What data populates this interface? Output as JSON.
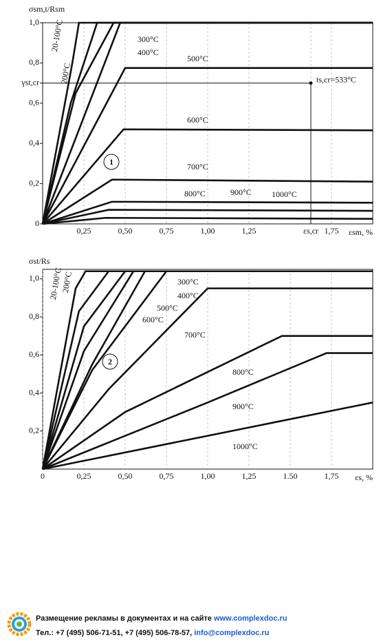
{
  "chart_data": [
    {
      "type": "line",
      "annotation_number": "1",
      "annotation": "ts,cr=533°C",
      "y_label": "σsm,t/Rsm",
      "x_label": "εsm, %",
      "xlim": [
        0,
        2
      ],
      "ylim": [
        0,
        1
      ],
      "grid": true,
      "xticks": [
        {
          "value": 0.25,
          "label": "0,25"
        },
        {
          "value": 0.5,
          "label": "0,50"
        },
        {
          "value": 0.75,
          "label": "0,75"
        },
        {
          "value": 1,
          "label": "1,00"
        },
        {
          "value": 1.25,
          "label": "1,25"
        },
        {
          "value": 1.625,
          "label": "εs,cr"
        },
        {
          "value": 1.75,
          "label": "1,75"
        }
      ],
      "yticks": [
        0,
        {
          "value": 0.2,
          "label": "0,2"
        },
        {
          "value": 0.4,
          "label": "0,4"
        },
        {
          "value": 0.6,
          "label": "0,6"
        },
        {
          "value": 0.8,
          "label": "0,8"
        },
        {
          "value": 1,
          "label": "1,0"
        },
        {
          "value": 0.7,
          "label": "γst,cr"
        }
      ],
      "series": [
        {
          "name": "20-100°C",
          "color": "#111",
          "x": [
            0,
            0.18,
            0.22,
            2
          ],
          "values": [
            0,
            0.8,
            1,
            1
          ]
        },
        {
          "name": "200°C",
          "color": "#111",
          "x": [
            0,
            0.17,
            0.33,
            2
          ],
          "values": [
            0,
            0.6,
            1,
            1
          ]
        },
        {
          "name": "300°C",
          "color": "#111",
          "x": [
            0,
            0.2,
            0.43,
            2
          ],
          "values": [
            0,
            0.65,
            1,
            1
          ]
        },
        {
          "name": "400°C",
          "color": "#111",
          "x": [
            0,
            0.47,
            2
          ],
          "values": [
            0,
            1,
            1
          ]
        },
        {
          "name": "500°C",
          "color": "#111",
          "x": [
            0,
            0.5,
            2
          ],
          "values": [
            0,
            0.775,
            0.775
          ]
        },
        {
          "name": "600°C",
          "color": "#111",
          "x": [
            0,
            0.49,
            2
          ],
          "values": [
            0,
            0.47,
            0.465
          ]
        },
        {
          "name": "700°C",
          "color": "#111",
          "x": [
            0,
            0.42,
            2
          ],
          "values": [
            0,
            0.22,
            0.21
          ]
        },
        {
          "name": "800°C",
          "color": "#111",
          "x": [
            0,
            0.42,
            2
          ],
          "values": [
            0,
            0.11,
            0.105
          ]
        },
        {
          "name": "900°C",
          "color": "#111",
          "x": [
            0,
            0.4,
            2
          ],
          "values": [
            0,
            0.07,
            0.065
          ]
        },
        {
          "name": "1000°C",
          "color": "#111",
          "x": [
            0,
            0.38,
            2
          ],
          "values": [
            0,
            0.03,
            0.025
          ]
        }
      ]
    },
    {
      "type": "line",
      "annotation_number": "2",
      "y_label": "σst/Rs",
      "x_label": "εs, %",
      "xlim": [
        0,
        2
      ],
      "ylim": [
        0,
        1.05
      ],
      "grid": true,
      "xticks": [
        0,
        {
          "value": 0.25,
          "label": "0,25"
        },
        {
          "value": 0.5,
          "label": "0,50"
        },
        {
          "value": 0.75,
          "label": "0,75"
        },
        {
          "value": 1,
          "label": "1,00"
        },
        {
          "value": 1.25,
          "label": "1,25"
        },
        {
          "value": 1.5,
          "label": "1.50"
        },
        {
          "value": 1.75,
          "label": "1,75"
        }
      ],
      "yticks": [
        {
          "value": 0.2,
          "label": "0,2"
        },
        {
          "value": 0.4,
          "label": "0,4"
        },
        {
          "value": 0.6,
          "label": "0,6"
        },
        {
          "value": 0.8,
          "label": "0,8"
        },
        {
          "value": 1,
          "label": "1,0"
        }
      ],
      "series": [
        {
          "name": "20-100°C",
          "color": "#111",
          "x": [
            0,
            0.2,
            0.26,
            2
          ],
          "values": [
            0,
            0.95,
            1.04,
            1.04
          ]
        },
        {
          "name": "200°C",
          "color": "#111",
          "x": [
            0,
            0.22,
            0.4,
            2
          ],
          "values": [
            0,
            0.83,
            1.04,
            1.04
          ]
        },
        {
          "name": "300°C",
          "color": "#111",
          "x": [
            0,
            0.25,
            0.5,
            2
          ],
          "values": [
            0,
            0.75,
            1.04,
            1.04
          ]
        },
        {
          "name": "400°C",
          "color": "#111",
          "x": [
            0,
            0.25,
            0.55,
            2
          ],
          "values": [
            0,
            0.62,
            1.04,
            1.04
          ]
        },
        {
          "name": "500°C",
          "color": "#111",
          "x": [
            0,
            0.3,
            0.62,
            2
          ],
          "values": [
            0,
            0.55,
            1.04,
            1.04
          ]
        },
        {
          "name": "600°C",
          "color": "#111",
          "x": [
            0,
            0.3,
            0.75,
            2
          ],
          "values": [
            0,
            0.52,
            1.04,
            1.04
          ]
        },
        {
          "name": "700°C",
          "color": "#111",
          "x": [
            0,
            0.4,
            1,
            2
          ],
          "values": [
            0,
            0.42,
            0.95,
            0.95
          ]
        },
        {
          "name": "800°C",
          "color": "#111",
          "x": [
            0,
            0.5,
            1.45,
            2
          ],
          "values": [
            0,
            0.3,
            0.7,
            0.7
          ]
        },
        {
          "name": "900°C",
          "color": "#111",
          "x": [
            0,
            1,
            1.72,
            2
          ],
          "values": [
            0,
            0.35,
            0.61,
            0.61
          ]
        },
        {
          "name": "1000°C",
          "color": "#111",
          "x": [
            0,
            2
          ],
          "values": [
            0,
            0.35
          ]
        }
      ]
    }
  ],
  "footer": {
    "line1": "Размещение рекламы в документах и на сайте ",
    "link1": "www.complexdoc.ru",
    "line2": "Тел.: +7 (495) 506-71-51, +7 (495) 506-78-57, ",
    "link2": "info@complexdoc.ru"
  }
}
